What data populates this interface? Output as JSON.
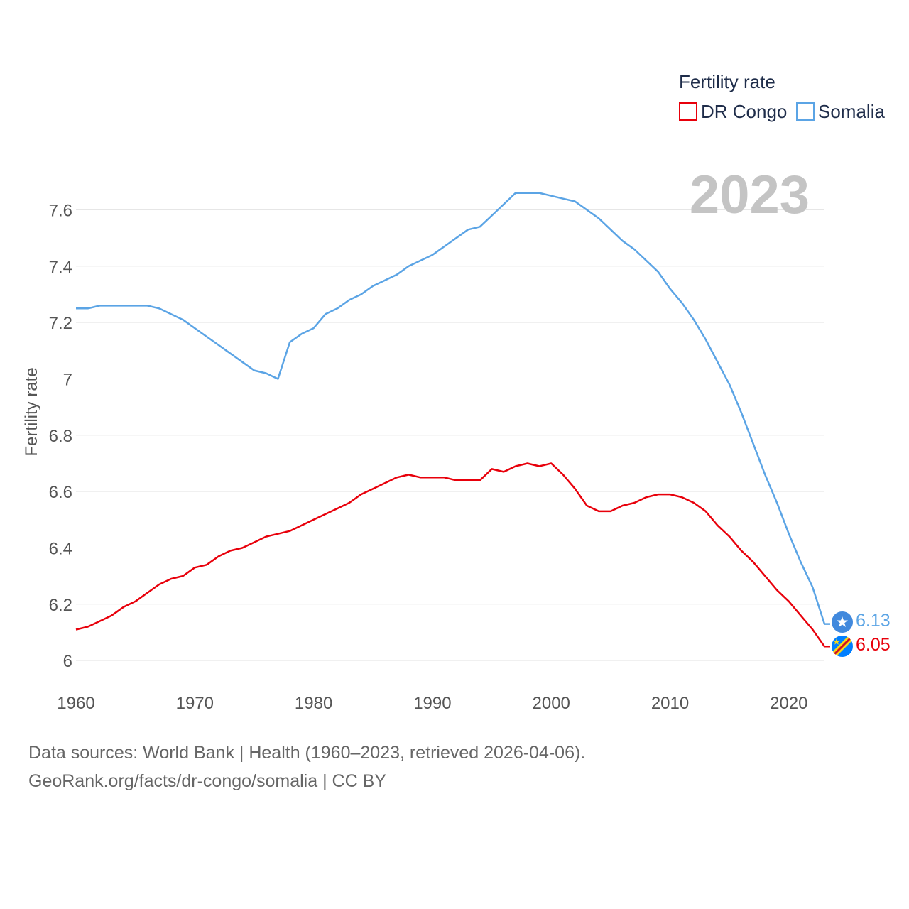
{
  "chart_data": {
    "type": "line",
    "title": "Fertility rate",
    "ylabel": "Fertility rate",
    "xlabel": "",
    "ylim": [
      5.96,
      7.74
    ],
    "xlim": [
      1960,
      2023
    ],
    "yticks": [
      6,
      6.2,
      6.4,
      6.6,
      6.8,
      7,
      7.2,
      7.4,
      7.6
    ],
    "ytick_labels": [
      "6",
      "6.2",
      "6.4",
      "6.6",
      "6.8",
      "7",
      "7.2",
      "7.4",
      "7.6"
    ],
    "xticks": [
      1960,
      1970,
      1980,
      1990,
      2000,
      2010,
      2020
    ],
    "xtick_labels": [
      "1960",
      "1970",
      "1980",
      "1990",
      "2000",
      "2010",
      "2020"
    ],
    "grid": true,
    "legend_position": "top-right",
    "year_label": "2023",
    "x": [
      1960,
      1961,
      1962,
      1963,
      1964,
      1965,
      1966,
      1967,
      1968,
      1969,
      1970,
      1971,
      1972,
      1973,
      1974,
      1975,
      1976,
      1977,
      1978,
      1979,
      1980,
      1981,
      1982,
      1983,
      1984,
      1985,
      1986,
      1987,
      1988,
      1989,
      1990,
      1991,
      1992,
      1993,
      1994,
      1995,
      1996,
      1997,
      1998,
      1999,
      2000,
      2001,
      2002,
      2003,
      2004,
      2005,
      2006,
      2007,
      2008,
      2009,
      2010,
      2011,
      2012,
      2013,
      2014,
      2015,
      2016,
      2017,
      2018,
      2019,
      2020,
      2021,
      2022,
      2023
    ],
    "series": [
      {
        "name": "DR Congo",
        "color": "#e8000b",
        "end_label": "6.05",
        "flag": "dr-congo-flag-icon",
        "values": [
          6.11,
          6.12,
          6.14,
          6.16,
          6.19,
          6.21,
          6.24,
          6.27,
          6.29,
          6.3,
          6.33,
          6.34,
          6.37,
          6.39,
          6.4,
          6.42,
          6.44,
          6.45,
          6.46,
          6.48,
          6.5,
          6.52,
          6.54,
          6.56,
          6.59,
          6.61,
          6.63,
          6.65,
          6.66,
          6.65,
          6.65,
          6.65,
          6.64,
          6.64,
          6.64,
          6.68,
          6.67,
          6.69,
          6.7,
          6.69,
          6.7,
          6.66,
          6.61,
          6.55,
          6.53,
          6.53,
          6.55,
          6.56,
          6.58,
          6.59,
          6.59,
          6.58,
          6.56,
          6.53,
          6.48,
          6.44,
          6.39,
          6.35,
          6.3,
          6.25,
          6.21,
          6.16,
          6.11,
          6.05
        ]
      },
      {
        "name": "Somalia",
        "color": "#5ba4e5",
        "end_label": "6.13",
        "flag": "somalia-flag-icon",
        "values": [
          7.25,
          7.25,
          7.26,
          7.26,
          7.26,
          7.26,
          7.26,
          7.25,
          7.23,
          7.21,
          7.18,
          7.15,
          7.12,
          7.09,
          7.06,
          7.03,
          7.02,
          7.0,
          7.13,
          7.16,
          7.18,
          7.23,
          7.25,
          7.28,
          7.3,
          7.33,
          7.35,
          7.37,
          7.4,
          7.42,
          7.44,
          7.47,
          7.5,
          7.53,
          7.54,
          7.58,
          7.62,
          7.66,
          7.66,
          7.66,
          7.65,
          7.64,
          7.63,
          7.6,
          7.57,
          7.53,
          7.49,
          7.46,
          7.42,
          7.38,
          7.32,
          7.27,
          7.21,
          7.14,
          7.06,
          6.98,
          6.88,
          6.77,
          6.66,
          6.56,
          6.45,
          6.35,
          6.26,
          6.13
        ]
      }
    ]
  },
  "source": {
    "line1": "Data sources: World Bank | Health (1960–2023, retrieved 2026-04-06).",
    "line2": "GeoRank.org/facts/dr-congo/somalia | CC BY"
  }
}
